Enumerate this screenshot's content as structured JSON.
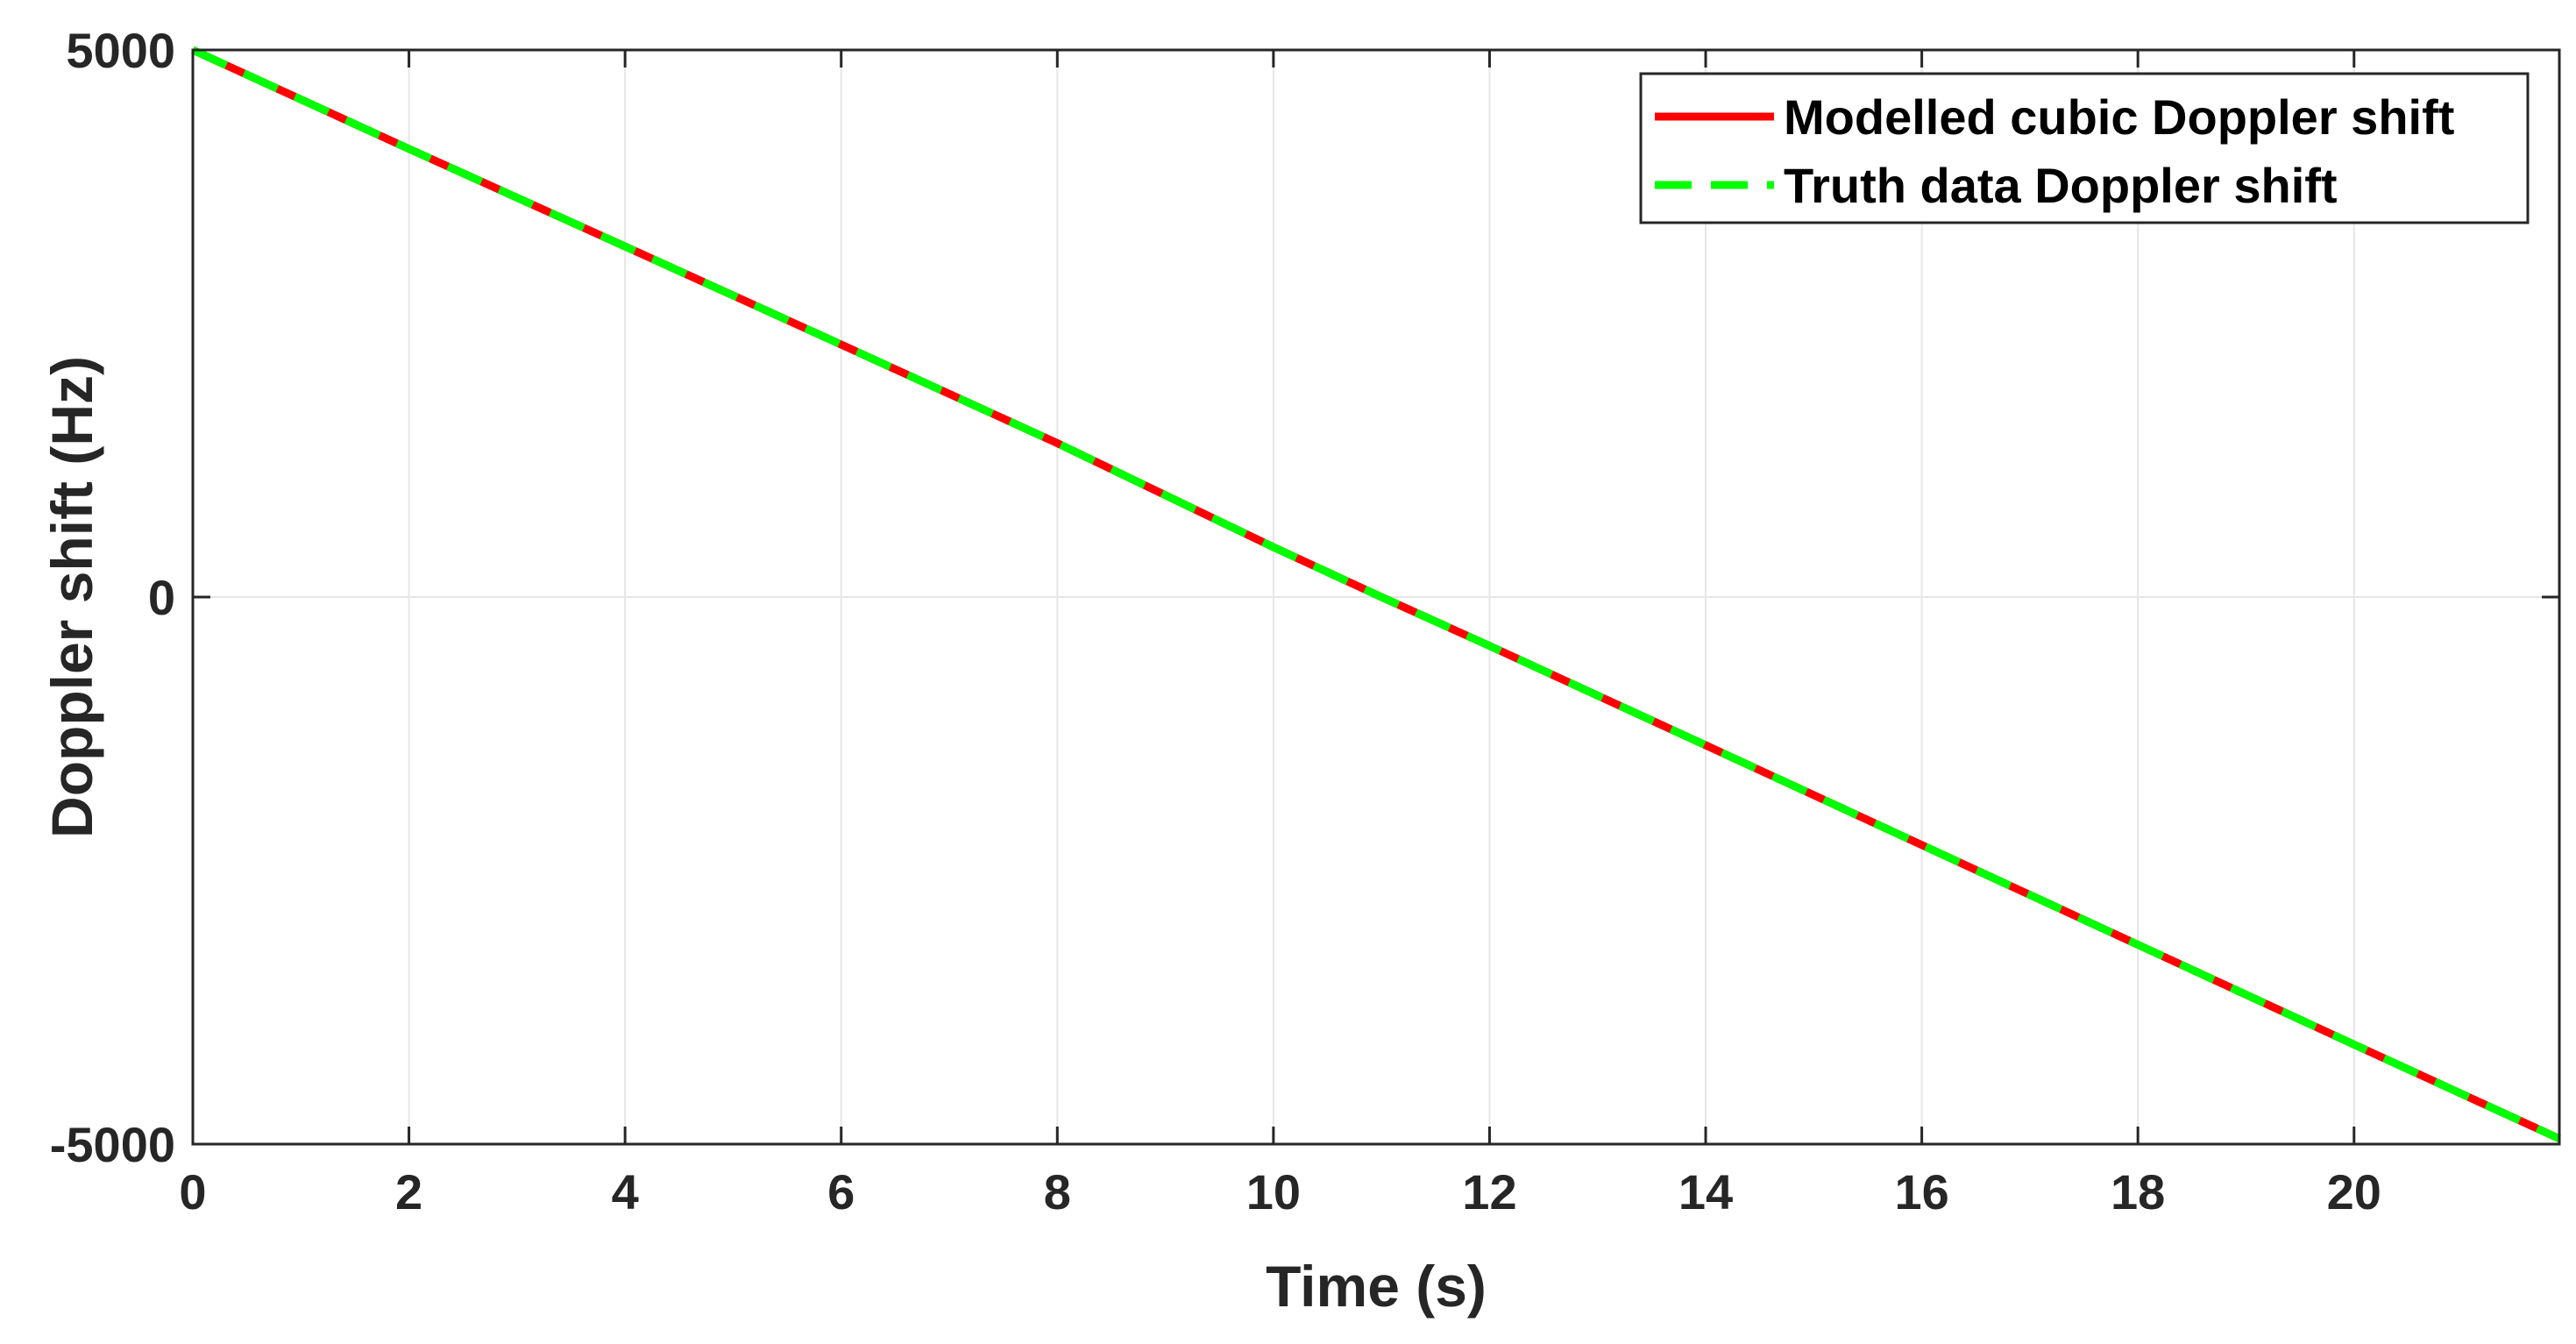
{
  "chart_data": {
    "type": "line",
    "title": "",
    "xlabel": "Time (s)",
    "ylabel": "Doppler shift (Hz)",
    "xlim": [
      0,
      21.9
    ],
    "ylim": [
      -5000,
      5000
    ],
    "xticks": [
      0,
      2,
      4,
      6,
      8,
      10,
      12,
      14,
      16,
      18,
      20
    ],
    "xtick_labels": [
      "0",
      "2",
      "4",
      "6",
      "8",
      "10",
      "12",
      "14",
      "16",
      "18",
      "20"
    ],
    "yticks": [
      5000,
      0,
      -5000
    ],
    "ytick_labels": [
      "5000",
      "0",
      "-5000"
    ],
    "grid": true,
    "legend_position": "top-right",
    "series": [
      {
        "name": "Modelled cubic Doppler shift",
        "color": "#ff0000",
        "style": "solid",
        "x": [
          0,
          2,
          4,
          6,
          8,
          10,
          11,
          12,
          14,
          16,
          18,
          20,
          21.9
        ],
        "y": [
          5000,
          4096,
          3204,
          2308,
          1406,
          456,
          0,
          -446,
          -1354,
          -2266,
          -3178,
          -4090,
          -4950
        ]
      },
      {
        "name": "Truth data Doppler shift",
        "color": "#00ff00",
        "style": "dashed",
        "x": [
          0,
          2,
          4,
          6,
          8,
          10,
          11,
          12,
          14,
          16,
          18,
          20,
          21.9
        ],
        "y": [
          5000,
          4096,
          3204,
          2308,
          1406,
          456,
          0,
          -446,
          -1354,
          -2266,
          -3178,
          -4090,
          -4950
        ]
      }
    ]
  }
}
